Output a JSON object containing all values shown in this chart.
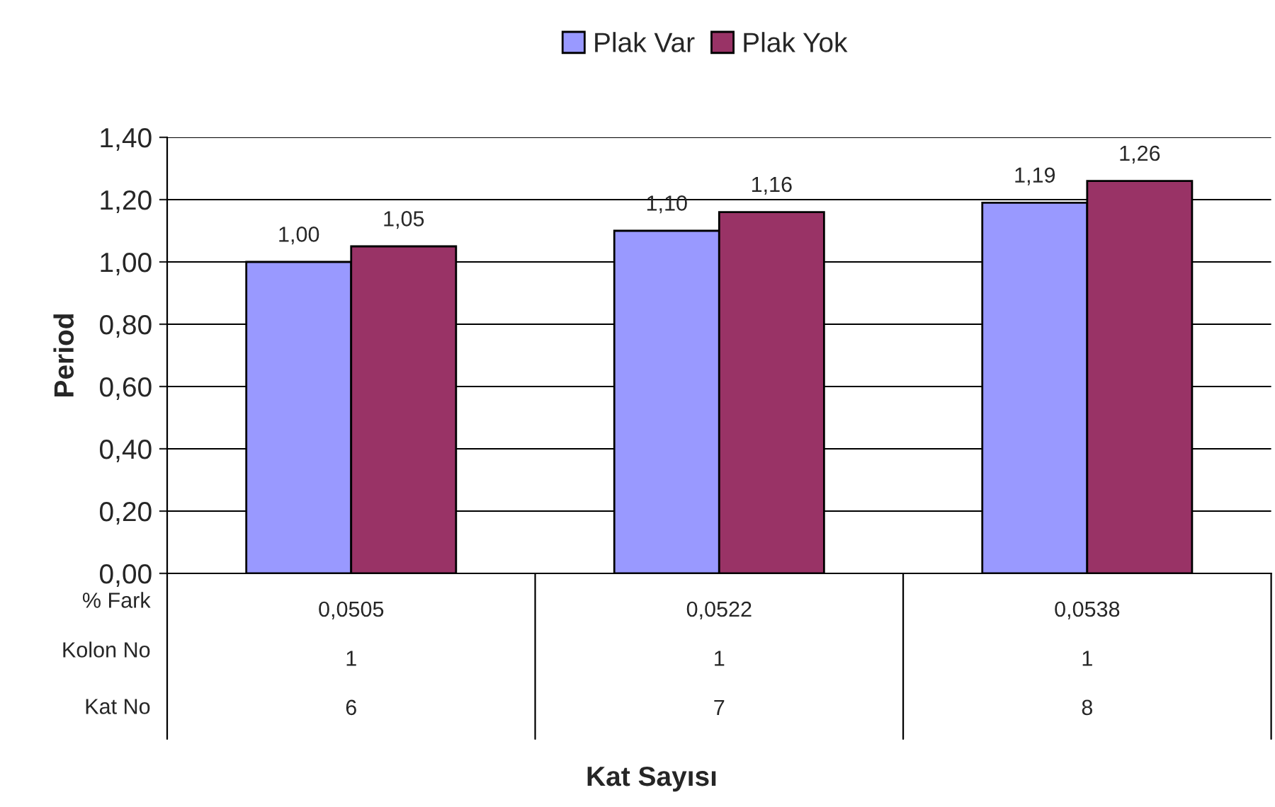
{
  "chart_data": {
    "type": "bar",
    "categories": [
      "0,0505\n1\n6",
      "0,0522\n1\n7",
      "0,0538\n1\n8"
    ],
    "series": [
      {
        "name": "Plak Var",
        "color": "#9999ff",
        "values": [
          1.0,
          1.1,
          1.19
        ],
        "value_labels": [
          "1,00",
          "1,10",
          "1,19"
        ]
      },
      {
        "name": "Plak Yok",
        "color": "#993366",
        "values": [
          1.05,
          1.16,
          1.26
        ],
        "value_labels": [
          "1,05",
          "1,16",
          "1,26"
        ]
      }
    ],
    "ylim": [
      0,
      1.4
    ],
    "yticks": [
      {
        "value": 0,
        "label": "0,00"
      },
      {
        "value": 0.2,
        "label": "0,20"
      },
      {
        "value": 0.4,
        "label": "0,40"
      },
      {
        "value": 0.6,
        "label": "0,60"
      },
      {
        "value": 0.8,
        "label": "0,80"
      },
      {
        "value": 1.0,
        "label": "1,00"
      },
      {
        "value": 1.2,
        "label": "1,20"
      },
      {
        "value": 1.4,
        "label": "1,40"
      }
    ],
    "ylabel": "Period",
    "annotations": [
      "% Fark",
      "Kolon No",
      "Kat No",
      "Kat Sayısı"
    ],
    "grid": "y",
    "legend": "top"
  }
}
